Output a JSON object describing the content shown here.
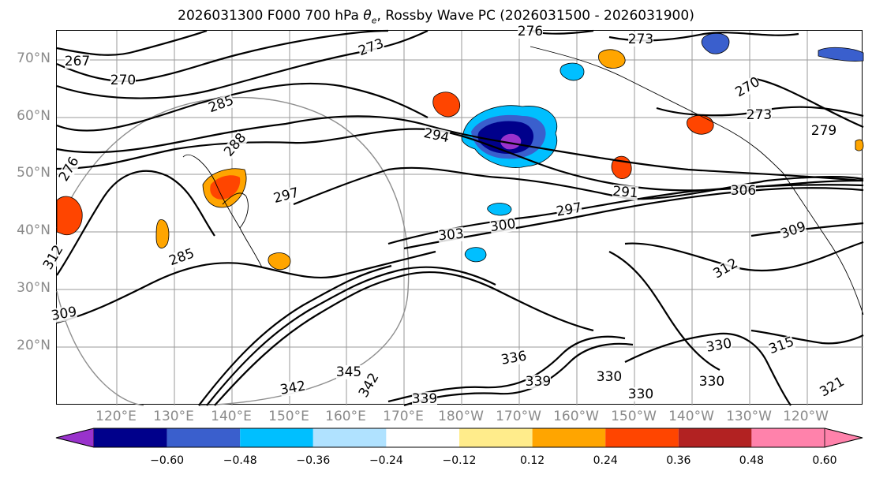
{
  "title": {
    "prefix": "2026031300 F000 700 hPa ",
    "theta_symbol": "θ",
    "theta_sub": "e",
    "suffix": ", Rossby Wave PC (2026031500 - 2026031900)"
  },
  "map": {
    "lat_labels": [
      "70°N",
      "60°N",
      "50°N",
      "40°N",
      "30°N",
      "20°N"
    ],
    "lon_labels": [
      "120°E",
      "130°E",
      "140°E",
      "150°E",
      "160°E",
      "170°E",
      "180°W",
      "170°W",
      "160°W",
      "150°W",
      "140°W",
      "130°W",
      "120°W"
    ],
    "contour_labels": [
      "267",
      "270",
      "273",
      "273",
      "276",
      "273",
      "279",
      "270",
      "285",
      "288",
      "294",
      "297",
      "291",
      "297",
      "300",
      "303",
      "306",
      "309",
      "312",
      "312",
      "315",
      "285",
      "309",
      "330",
      "330",
      "330",
      "336",
      "339",
      "339",
      "342",
      "342",
      "345",
      "330",
      "321",
      "276"
    ],
    "colors": {
      "contour": "#000000",
      "grid": "#9a9a9a",
      "coast": "#000000"
    }
  },
  "colorbar": {
    "ticks": [
      "−0.60",
      "−0.48",
      "−0.36",
      "−0.24",
      "−0.12",
      "0.12",
      "0.24",
      "0.36",
      "0.48",
      "0.60"
    ],
    "colors": [
      "#9932cc",
      "#00008b",
      "#3a5fcd",
      "#00bfff",
      "#b0e2ff",
      "#ffffff",
      "#ffec8b",
      "#ffa500",
      "#ff4500",
      "#b22222",
      "#ff82ab",
      "#ff82ab"
    ]
  }
}
